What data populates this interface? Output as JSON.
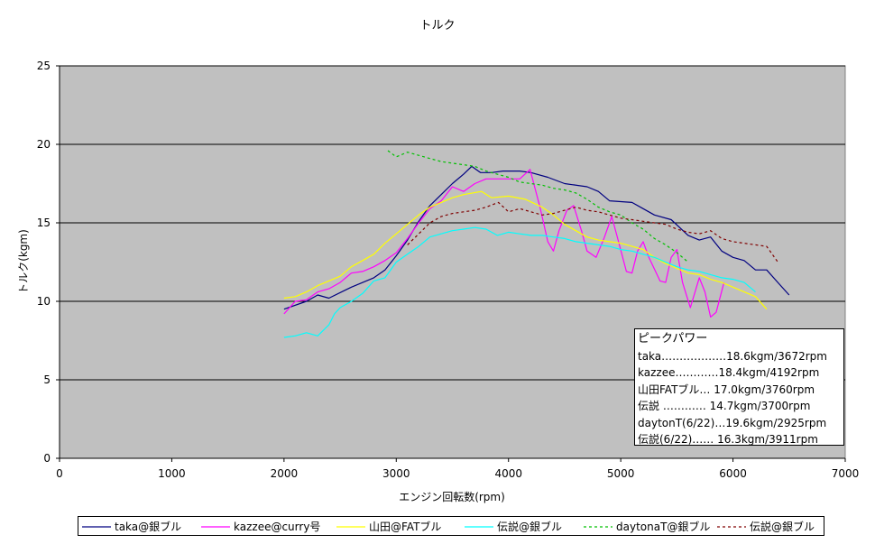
{
  "chart_data": {
    "type": "line",
    "title": "トルク",
    "xlabel": "エンジン回転数(rpm)",
    "ylabel": "トルク(kgm)",
    "xlim": [
      0,
      7000
    ],
    "ylim": [
      0,
      25
    ],
    "xticks": [
      "0",
      "1000",
      "2000",
      "3000",
      "4000",
      "5000",
      "6000",
      "7000"
    ],
    "yticks": [
      "0",
      "5",
      "10",
      "15",
      "20",
      "25"
    ],
    "grid": "horizontal",
    "legend_position": "bottom",
    "series": [
      {
        "name": "taka@銀ブル",
        "color": "#000080",
        "dash": "solid",
        "points": [
          [
            2000,
            9.5
          ],
          [
            2200,
            10.0
          ],
          [
            2300,
            10.4
          ],
          [
            2400,
            10.2
          ],
          [
            2600,
            10.9
          ],
          [
            2800,
            11.5
          ],
          [
            2900,
            12.0
          ],
          [
            3000,
            12.9
          ],
          [
            3100,
            13.9
          ],
          [
            3200,
            15.1
          ],
          [
            3300,
            16.1
          ],
          [
            3400,
            16.8
          ],
          [
            3500,
            17.5
          ],
          [
            3600,
            18.1
          ],
          [
            3672,
            18.6
          ],
          [
            3750,
            18.2
          ],
          [
            3850,
            18.2
          ],
          [
            3950,
            18.3
          ],
          [
            4100,
            18.3
          ],
          [
            4200,
            18.2
          ],
          [
            4350,
            17.9
          ],
          [
            4500,
            17.5
          ],
          [
            4700,
            17.3
          ],
          [
            4800,
            17.0
          ],
          [
            4900,
            16.4
          ],
          [
            5100,
            16.3
          ],
          [
            5200,
            15.9
          ],
          [
            5300,
            15.5
          ],
          [
            5450,
            15.2
          ],
          [
            5600,
            14.2
          ],
          [
            5700,
            13.9
          ],
          [
            5800,
            14.1
          ],
          [
            5900,
            13.2
          ],
          [
            6000,
            12.8
          ],
          [
            6100,
            12.6
          ],
          [
            6200,
            12.0
          ],
          [
            6300,
            12.0
          ],
          [
            6400,
            11.2
          ],
          [
            6500,
            10.4
          ]
        ]
      },
      {
        "name": "kazzee@curry号",
        "color": "#ff00ff",
        "dash": "solid",
        "points": [
          [
            2000,
            9.2
          ],
          [
            2100,
            10.0
          ],
          [
            2200,
            10.1
          ],
          [
            2300,
            10.6
          ],
          [
            2400,
            10.8
          ],
          [
            2500,
            11.2
          ],
          [
            2600,
            11.8
          ],
          [
            2700,
            11.9
          ],
          [
            2800,
            12.2
          ],
          [
            2900,
            12.6
          ],
          [
            3000,
            13.1
          ],
          [
            3100,
            14.0
          ],
          [
            3200,
            15.0
          ],
          [
            3300,
            15.9
          ],
          [
            3400,
            16.4
          ],
          [
            3500,
            17.3
          ],
          [
            3600,
            17.0
          ],
          [
            3700,
            17.5
          ],
          [
            3800,
            17.8
          ],
          [
            4000,
            17.8
          ],
          [
            4100,
            17.8
          ],
          [
            4192,
            18.4
          ],
          [
            4280,
            16.0
          ],
          [
            4350,
            13.8
          ],
          [
            4400,
            13.2
          ],
          [
            4450,
            14.5
          ],
          [
            4520,
            15.8
          ],
          [
            4580,
            16.1
          ],
          [
            4650,
            14.5
          ],
          [
            4700,
            13.2
          ],
          [
            4780,
            12.8
          ],
          [
            4850,
            14.0
          ],
          [
            4920,
            15.4
          ],
          [
            4980,
            13.8
          ],
          [
            5050,
            11.9
          ],
          [
            5100,
            11.8
          ],
          [
            5150,
            13.2
          ],
          [
            5200,
            13.8
          ],
          [
            5250,
            12.8
          ],
          [
            5350,
            11.3
          ],
          [
            5400,
            11.2
          ],
          [
            5450,
            12.8
          ],
          [
            5500,
            13.3
          ],
          [
            5550,
            11.2
          ],
          [
            5620,
            9.6
          ],
          [
            5700,
            11.5
          ],
          [
            5750,
            10.6
          ],
          [
            5800,
            9.0
          ],
          [
            5850,
            9.3
          ],
          [
            5920,
            11.2
          ]
        ]
      },
      {
        "name": "山田@FATブル",
        "color": "#ffff00",
        "dash": "solid",
        "points": [
          [
            2000,
            10.2
          ],
          [
            2100,
            10.3
          ],
          [
            2200,
            10.6
          ],
          [
            2300,
            11.0
          ],
          [
            2400,
            11.3
          ],
          [
            2500,
            11.6
          ],
          [
            2600,
            12.2
          ],
          [
            2700,
            12.6
          ],
          [
            2800,
            13.0
          ],
          [
            2900,
            13.7
          ],
          [
            3000,
            14.3
          ],
          [
            3100,
            14.9
          ],
          [
            3200,
            15.5
          ],
          [
            3300,
            16.0
          ],
          [
            3400,
            16.3
          ],
          [
            3500,
            16.6
          ],
          [
            3600,
            16.8
          ],
          [
            3760,
            17.0
          ],
          [
            3850,
            16.6
          ],
          [
            4000,
            16.7
          ],
          [
            4150,
            16.5
          ],
          [
            4300,
            16.0
          ],
          [
            4400,
            15.5
          ],
          [
            4500,
            14.9
          ],
          [
            4600,
            14.5
          ],
          [
            4700,
            14.1
          ],
          [
            4800,
            13.9
          ],
          [
            5000,
            13.7
          ],
          [
            5100,
            13.5
          ],
          [
            5200,
            13.3
          ],
          [
            5300,
            12.8
          ],
          [
            5400,
            12.4
          ],
          [
            5500,
            12.1
          ],
          [
            5600,
            11.8
          ],
          [
            5700,
            11.7
          ],
          [
            5800,
            11.4
          ],
          [
            5900,
            11.2
          ],
          [
            6000,
            10.9
          ],
          [
            6100,
            10.6
          ],
          [
            6200,
            10.3
          ],
          [
            6300,
            9.5
          ]
        ]
      },
      {
        "name": "伝説@銀ブル",
        "color": "#00ffff",
        "dash": "solid",
        "points": [
          [
            2000,
            7.7
          ],
          [
            2100,
            7.8
          ],
          [
            2200,
            8.0
          ],
          [
            2300,
            7.8
          ],
          [
            2400,
            8.5
          ],
          [
            2450,
            9.2
          ],
          [
            2500,
            9.6
          ],
          [
            2600,
            10.0
          ],
          [
            2700,
            10.5
          ],
          [
            2800,
            11.3
          ],
          [
            2900,
            11.5
          ],
          [
            3000,
            12.5
          ],
          [
            3100,
            13.0
          ],
          [
            3200,
            13.5
          ],
          [
            3300,
            14.1
          ],
          [
            3400,
            14.3
          ],
          [
            3500,
            14.5
          ],
          [
            3600,
            14.6
          ],
          [
            3700,
            14.7
          ],
          [
            3800,
            14.6
          ],
          [
            3900,
            14.2
          ],
          [
            4000,
            14.4
          ],
          [
            4100,
            14.3
          ],
          [
            4200,
            14.2
          ],
          [
            4300,
            14.2
          ],
          [
            4400,
            14.1
          ],
          [
            4500,
            14.0
          ],
          [
            4600,
            13.8
          ],
          [
            4700,
            13.7
          ],
          [
            4800,
            13.6
          ],
          [
            4900,
            13.5
          ],
          [
            5000,
            13.3
          ],
          [
            5100,
            13.2
          ],
          [
            5200,
            13.0
          ],
          [
            5300,
            12.8
          ],
          [
            5400,
            12.5
          ],
          [
            5500,
            12.2
          ],
          [
            5600,
            12.0
          ],
          [
            5700,
            11.9
          ],
          [
            5800,
            11.7
          ],
          [
            5900,
            11.5
          ],
          [
            6000,
            11.4
          ],
          [
            6100,
            11.2
          ],
          [
            6200,
            10.6
          ]
        ]
      },
      {
        "name": "daytonaT@銀ブル",
        "color": "#00c000",
        "dash": "dashed",
        "points": [
          [
            2925,
            19.6
          ],
          [
            3000,
            19.2
          ],
          [
            3100,
            19.5
          ],
          [
            3200,
            19.3
          ],
          [
            3300,
            19.1
          ],
          [
            3400,
            18.9
          ],
          [
            3500,
            18.8
          ],
          [
            3600,
            18.7
          ],
          [
            3700,
            18.6
          ],
          [
            3800,
            18.3
          ],
          [
            3900,
            18.1
          ],
          [
            4000,
            17.9
          ],
          [
            4100,
            17.6
          ],
          [
            4200,
            17.5
          ],
          [
            4300,
            17.4
          ],
          [
            4400,
            17.2
          ],
          [
            4500,
            17.1
          ],
          [
            4600,
            16.9
          ],
          [
            4700,
            16.5
          ],
          [
            4800,
            16.0
          ],
          [
            4900,
            15.7
          ],
          [
            5000,
            15.5
          ],
          [
            5100,
            15.0
          ],
          [
            5200,
            14.6
          ],
          [
            5300,
            14.0
          ],
          [
            5400,
            13.6
          ],
          [
            5500,
            13.1
          ],
          [
            5600,
            12.5
          ]
        ]
      },
      {
        "name": "伝説@銀ブル",
        "color": "#800000",
        "dash": "dashed",
        "points": [
          [
            3100,
            13.6
          ],
          [
            3200,
            14.3
          ],
          [
            3300,
            15.0
          ],
          [
            3400,
            15.4
          ],
          [
            3500,
            15.6
          ],
          [
            3600,
            15.7
          ],
          [
            3700,
            15.8
          ],
          [
            3800,
            16.0
          ],
          [
            3911,
            16.3
          ],
          [
            4000,
            15.7
          ],
          [
            4100,
            15.9
          ],
          [
            4200,
            15.7
          ],
          [
            4300,
            15.5
          ],
          [
            4400,
            15.6
          ],
          [
            4500,
            15.8
          ],
          [
            4600,
            16.0
          ],
          [
            4700,
            15.8
          ],
          [
            4800,
            15.7
          ],
          [
            4900,
            15.5
          ],
          [
            5000,
            15.3
          ],
          [
            5100,
            15.2
          ],
          [
            5200,
            15.1
          ],
          [
            5300,
            15.0
          ],
          [
            5400,
            14.9
          ],
          [
            5500,
            14.6
          ],
          [
            5600,
            14.4
          ],
          [
            5700,
            14.3
          ],
          [
            5800,
            14.5
          ],
          [
            5900,
            14.0
          ],
          [
            6000,
            13.8
          ],
          [
            6100,
            13.7
          ],
          [
            6200,
            13.6
          ],
          [
            6300,
            13.5
          ],
          [
            6400,
            12.5
          ]
        ]
      }
    ]
  },
  "peak_box": {
    "title": "ピークパワー",
    "lines": [
      "taka………………18.6kgm/3672rpm",
      "kazzee…………18.4kgm/4192rpm",
      "山田FATブル…  17.0kgm/3760rpm",
      "伝説  …………  14.7kgm/3700rpm",
      "daytonT(6/22)…19.6kgm/2925rpm",
      "伝説(6/22)……  16.3kgm/3911rpm"
    ]
  },
  "legend": [
    {
      "label": "taka@銀ブル",
      "color": "#000080",
      "dash": "solid"
    },
    {
      "label": "kazzee@curry号",
      "color": "#ff00ff",
      "dash": "solid"
    },
    {
      "label": "山田@FATブル",
      "color": "#ffff00",
      "dash": "solid"
    },
    {
      "label": "伝説@銀ブル",
      "color": "#00ffff",
      "dash": "solid"
    },
    {
      "label": "daytonaT@銀ブル",
      "color": "#00c000",
      "dash": "dashed"
    },
    {
      "label": "伝説@銀ブル",
      "color": "#800000",
      "dash": "dashed"
    }
  ]
}
